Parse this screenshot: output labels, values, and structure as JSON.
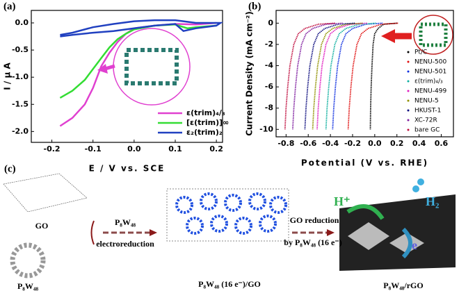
{
  "chart_data": [
    {
      "type": "line",
      "panel": "(a)",
      "xlabel": "E / V vs. SCE",
      "ylabel": "I / μ A",
      "xlim": [
        -0.25,
        0.215
      ],
      "ylim": [
        -2.2,
        0.23
      ],
      "xticks": [
        -0.2,
        -0.1,
        {
          "value": 0,
          "label": "0.0"
        },
        0.1,
        0.2
      ],
      "yticks": [
        {
          "value": 0,
          "label": "0.0"
        },
        -0.5,
        {
          "value": -1,
          "label": "-1.0"
        },
        -1.5,
        {
          "value": -2,
          "label": "-2.0"
        }
      ],
      "series": [
        {
          "name": "ε(trim)₄/₃",
          "color": "#e040d0",
          "x": [
            -0.18,
            -0.15,
            -0.12,
            -0.1,
            -0.08,
            -0.06,
            -0.04,
            -0.02,
            0,
            0.05,
            0.1,
            0.15,
            0.2
          ],
          "values": [
            -1.9,
            -1.75,
            -1.5,
            -1.2,
            -0.8,
            -0.55,
            -0.35,
            -0.2,
            -0.1,
            -0.05,
            -0.02,
            -0.03,
            0
          ]
        },
        {
          "name": "[ε(trim)]∞",
          "color": "#33dd33",
          "x": [
            -0.18,
            -0.15,
            -0.12,
            -0.1,
            -0.08,
            -0.06,
            -0.04,
            -0.02,
            0,
            0.05,
            0.1,
            0.13,
            0.15,
            0.2
          ],
          "values": [
            -1.38,
            -1.25,
            -1.05,
            -0.85,
            -0.65,
            -0.45,
            -0.3,
            -0.2,
            -0.12,
            -0.05,
            -0.03,
            -0.1,
            -0.08,
            -0.05
          ]
        },
        {
          "name": "ε₂(trim)₂",
          "color": "#2040c0",
          "x": [
            -0.18,
            -0.15,
            -0.1,
            -0.05,
            0,
            0.05,
            0.1,
            0.12,
            0.15,
            0.2,
            0.21,
            0.15,
            0.12,
            0.1,
            0.05,
            0,
            -0.05,
            -0.1,
            -0.15,
            -0.18
          ],
          "values": [
            -0.25,
            -0.22,
            -0.18,
            -0.15,
            -0.1,
            -0.05,
            -0.02,
            -0.15,
            -0.1,
            -0.05,
            0,
            0,
            0.03,
            0.05,
            0.05,
            0.03,
            -0.02,
            -0.08,
            -0.18,
            -0.22
          ]
        }
      ]
    },
    {
      "type": "line",
      "panel": "(b)",
      "xlabel": "Potential (V vs. RHE)",
      "ylabel": "Current Density (mA cm⁻²)",
      "xlim": [
        -0.89,
        0.71
      ],
      "ylim": [
        -10.7,
        1.2
      ],
      "xticks": [
        -0.8,
        -0.6,
        -0.4,
        -0.2,
        {
          "value": 0,
          "label": "0.0"
        },
        0.2,
        0.4,
        0.6
      ],
      "yticks": [
        0,
        -2,
        -4,
        -6,
        -8,
        -10
      ],
      "series": [
        {
          "name": "Pt/C",
          "color": "#000000",
          "x": [
            0.2,
            0.08,
            0.03,
            0.0,
            -0.015,
            -0.025,
            -0.032,
            -0.037,
            -0.04
          ],
          "values": [
            0,
            -0.1,
            -0.5,
            -1,
            -2,
            -4,
            -6,
            -8,
            -10
          ]
        },
        {
          "name": "NENU-500",
          "color": "#e01010",
          "x": [
            0.21,
            0.06,
            -0.06,
            -0.12,
            -0.16,
            -0.195,
            -0.215,
            -0.23,
            -0.24
          ],
          "values": [
            0,
            -0.1,
            -0.5,
            -1,
            -2,
            -4,
            -6,
            -8,
            -10
          ]
        },
        {
          "name": "NENU-501",
          "color": "#1030e0",
          "x": [
            0.07,
            -0.08,
            -0.2,
            -0.26,
            -0.3,
            -0.335,
            -0.355,
            -0.37,
            -0.38
          ],
          "values": [
            0,
            -0.1,
            -0.5,
            -1,
            -2,
            -4,
            -6,
            -8,
            -10
          ]
        },
        {
          "name": "ε(trim)₄/₃",
          "color": "#10b0a0",
          "x": [
            0.01,
            -0.14,
            -0.26,
            -0.32,
            -0.36,
            -0.395,
            -0.415,
            -0.43,
            -0.44
          ],
          "values": [
            0,
            -0.1,
            -0.5,
            -1,
            -2,
            -4,
            -6,
            -8,
            -10
          ]
        },
        {
          "name": "NENU-499",
          "color": "#e020c0",
          "x": [
            -0.07,
            -0.22,
            -0.34,
            -0.4,
            -0.44,
            -0.475,
            -0.495,
            -0.51,
            -0.52
          ],
          "values": [
            0,
            -0.1,
            -0.5,
            -1,
            -2,
            -4,
            -6,
            -8,
            -10
          ]
        },
        {
          "name": "NENU-5",
          "color": "#909000",
          "x": [
            -0.11,
            -0.26,
            -0.38,
            -0.44,
            -0.48,
            -0.515,
            -0.535,
            -0.55,
            -0.56
          ],
          "values": [
            0,
            -0.1,
            -0.5,
            -1,
            -2,
            -4,
            -6,
            -8,
            -10
          ]
        },
        {
          "name": "HKUST-1",
          "color": "#101080",
          "x": [
            -0.18,
            -0.33,
            -0.45,
            -0.51,
            -0.55,
            -0.585,
            -0.605,
            -0.62,
            -0.63
          ],
          "values": [
            0,
            -0.1,
            -0.5,
            -1,
            -2,
            -4,
            -6,
            -8,
            -10
          ]
        },
        {
          "name": "XC-72R",
          "color": "#8020a0",
          "x": [
            -0.29,
            -0.44,
            -0.56,
            -0.62,
            -0.66,
            -0.695,
            -0.715,
            -0.73,
            -0.74
          ],
          "values": [
            0,
            -0.1,
            -0.5,
            -1,
            -2,
            -4,
            -6,
            -8,
            -10
          ]
        },
        {
          "name": "bare GC",
          "color": "#c01040",
          "x": [
            -0.36,
            -0.51,
            -0.63,
            -0.69,
            -0.73,
            -0.765,
            -0.785,
            -0.8,
            -0.81
          ],
          "values": [
            0,
            -0.1,
            -0.5,
            -1,
            -2,
            -4,
            -6,
            -8,
            -10
          ]
        }
      ]
    }
  ],
  "diagram": {
    "panel": "(c)",
    "go": "GO",
    "p8w48": "P₈W₄₈",
    "step1_top": "P₈W₄₈",
    "step1_bottom": "electroreduction",
    "intermediate": "P₈W₄₈ (16 e⁻)/GO",
    "step2_top": "GO reduction",
    "step2_bottom": "by P₈W₄₈ (16 e⁻)",
    "product": "P₈W₄₈/rGO",
    "proton": "H⁺",
    "hydrogen": "H₂",
    "electron": "e"
  }
}
